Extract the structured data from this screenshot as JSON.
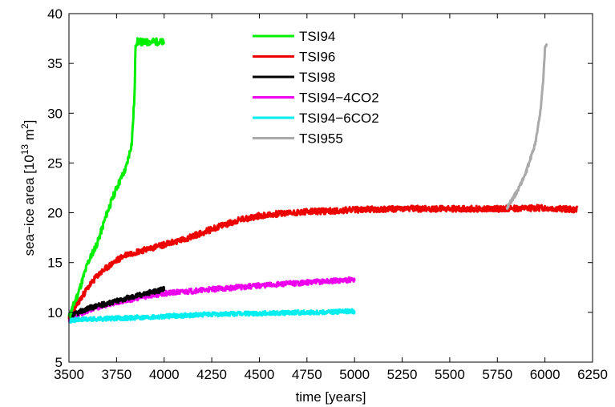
{
  "chart_data": {
    "type": "line",
    "title": "",
    "xlabel": "time [years]",
    "ylabel": {
      "prefix": "sea−ice area [10",
      "exp1": "13",
      "middle": " m",
      "exp2": "2",
      "suffix": "]"
    },
    "xlim": [
      3500,
      6250
    ],
    "ylim": [
      5,
      40
    ],
    "xticks": [
      3500,
      3750,
      4000,
      4250,
      4500,
      4750,
      5000,
      5250,
      5500,
      5750,
      6000,
      6250
    ],
    "yticks": [
      5,
      10,
      15,
      20,
      25,
      30,
      35,
      40
    ],
    "grid": false,
    "legend_position": "top-center",
    "series": [
      {
        "name": "TSI94",
        "color": "#00ee00",
        "noise": 0.35,
        "seed": 11,
        "x": [
          3500,
          3550,
          3600,
          3650,
          3700,
          3750,
          3800,
          3830,
          3845,
          3850,
          3860,
          3900,
          3950,
          4000
        ],
        "y": [
          9.5,
          12,
          15,
          17,
          20,
          22.5,
          24.5,
          27,
          32,
          37,
          37.2,
          37.1,
          37.2,
          37.1
        ]
      },
      {
        "name": "TSI96",
        "color": "#ee0000",
        "noise": 0.3,
        "seed": 23,
        "x": [
          3500,
          3550,
          3600,
          3650,
          3700,
          3750,
          3800,
          3900,
          4000,
          4100,
          4200,
          4300,
          4400,
          4500,
          4600,
          4750,
          4900,
          5000,
          5250,
          5500,
          5750,
          6000,
          6170
        ],
        "y": [
          9.5,
          11,
          12.5,
          13.7,
          14.5,
          15.2,
          15.8,
          16.3,
          16.8,
          17.3,
          18,
          18.7,
          19.3,
          19.7,
          19.9,
          20.1,
          20.2,
          20.3,
          20.4,
          20.4,
          20.4,
          20.5,
          20.3
        ]
      },
      {
        "name": "TSI98",
        "color": "#000000",
        "noise": 0.25,
        "seed": 37,
        "x": [
          3500,
          3550,
          3600,
          3700,
          3800,
          3900,
          4000
        ],
        "y": [
          9.5,
          10,
          10.4,
          10.9,
          11.4,
          11.9,
          12.3
        ]
      },
      {
        "name": "TSI94−4CO2",
        "color": "#ee00ee",
        "noise": 0.25,
        "seed": 53,
        "x": [
          3500,
          3600,
          3700,
          3800,
          3900,
          4000,
          4250,
          4500,
          4750,
          5000
        ],
        "y": [
          9.3,
          10.2,
          10.8,
          11.2,
          11.6,
          11.9,
          12.3,
          12.7,
          13.0,
          13.3
        ]
      },
      {
        "name": "TSI94−6CO2",
        "color": "#00eeee",
        "noise": 0.22,
        "seed": 71,
        "x": [
          3500,
          3600,
          3750,
          4000,
          4250,
          4500,
          4750,
          5000
        ],
        "y": [
          9.2,
          9.3,
          9.4,
          9.6,
          9.8,
          9.9,
          10.0,
          10.1
        ]
      },
      {
        "name": "TSI955",
        "color": "#aaaaaa",
        "noise": 0.2,
        "seed": 89,
        "x": [
          5800,
          5850,
          5900,
          5950,
          5975,
          5990,
          6000,
          6010
        ],
        "y": [
          20.5,
          22,
          24,
          27,
          30,
          33,
          36.5,
          36.8
        ]
      }
    ]
  }
}
